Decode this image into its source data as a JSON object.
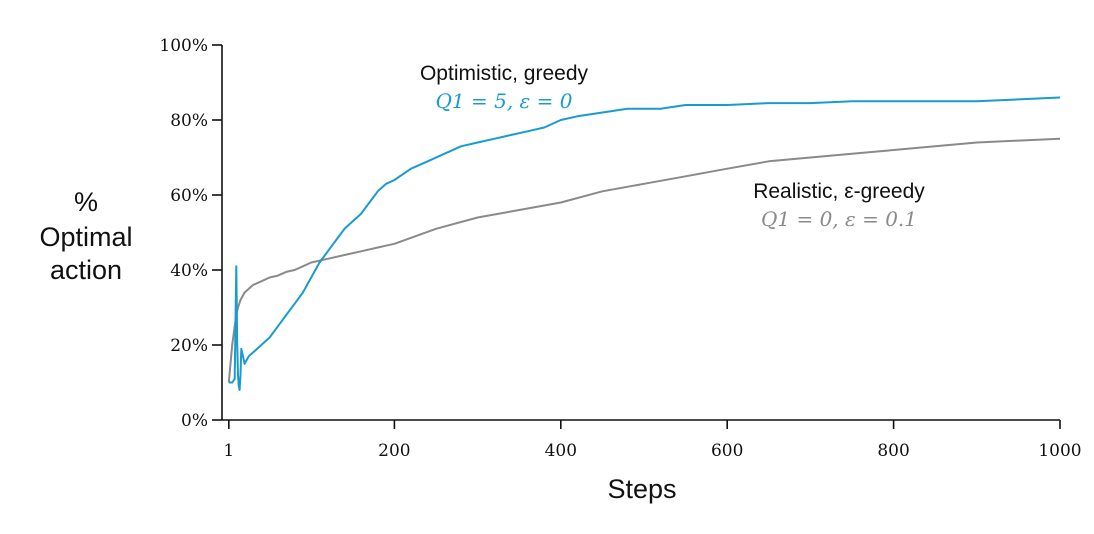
{
  "chart_data": {
    "type": "line",
    "xlabel": "Steps",
    "ylabel_lines": [
      "%",
      "Optimal",
      "action"
    ],
    "xlim": [
      0,
      1000
    ],
    "ylim": [
      0,
      100
    ],
    "x_ticks": [
      {
        "value": 1,
        "label": "1"
      },
      {
        "value": 200,
        "label": "200"
      },
      {
        "value": 400,
        "label": "400"
      },
      {
        "value": 600,
        "label": "600"
      },
      {
        "value": 800,
        "label": "800"
      },
      {
        "value": 1000,
        "label": "1000"
      }
    ],
    "y_ticks": [
      {
        "value": 0,
        "label": "0%"
      },
      {
        "value": 20,
        "label": "20%"
      },
      {
        "value": 40,
        "label": "40%"
      },
      {
        "value": 60,
        "label": "60%"
      },
      {
        "value": 80,
        "label": "80%"
      },
      {
        "value": 100,
        "label": "100%"
      }
    ],
    "grid": false,
    "series": [
      {
        "name": "Optimistic, greedy",
        "param_label": "Q1 = 5,  ε = 0",
        "color": "#1a9bd0",
        "x": [
          1,
          5,
          8,
          10,
          11,
          12,
          13,
          14,
          15,
          16,
          18,
          20,
          25,
          30,
          40,
          50,
          60,
          70,
          80,
          90,
          100,
          110,
          120,
          130,
          140,
          150,
          160,
          170,
          180,
          190,
          200,
          220,
          240,
          260,
          280,
          300,
          320,
          340,
          360,
          380,
          400,
          420,
          450,
          480,
          500,
          520,
          550,
          580,
          600,
          650,
          700,
          750,
          800,
          850,
          900,
          950,
          1000
        ],
        "y": [
          10,
          10,
          11,
          41,
          20,
          12,
          9,
          8,
          12,
          19,
          17,
          15,
          17,
          18,
          20,
          22,
          25,
          28,
          31,
          34,
          38,
          42,
          45,
          48,
          51,
          53,
          55,
          58,
          61,
          63,
          64,
          67,
          69,
          71,
          73,
          74,
          75,
          76,
          77,
          78,
          80,
          81,
          82,
          83,
          83,
          83,
          84,
          84,
          84,
          84.5,
          84.5,
          85,
          85,
          85,
          85,
          85.5,
          86
        ]
      },
      {
        "name": "Realistic, ε-greedy",
        "param_label": "Q1 = 0,  ε = 0.1",
        "color": "#8a8a8a",
        "x": [
          1,
          5,
          8,
          10,
          12,
          15,
          20,
          25,
          30,
          40,
          50,
          60,
          70,
          80,
          90,
          100,
          120,
          140,
          160,
          180,
          200,
          250,
          300,
          350,
          400,
          450,
          500,
          550,
          600,
          650,
          700,
          750,
          800,
          850,
          900,
          950,
          1000
        ],
        "y": [
          10,
          20,
          25,
          28,
          30,
          32,
          34,
          35,
          36,
          37,
          38,
          38.5,
          39.5,
          40,
          41,
          42,
          43,
          44,
          45,
          46,
          47,
          51,
          54,
          56,
          58,
          61,
          63,
          65,
          67,
          69,
          70,
          71,
          72,
          73,
          74,
          74.5,
          75
        ]
      }
    ]
  }
}
